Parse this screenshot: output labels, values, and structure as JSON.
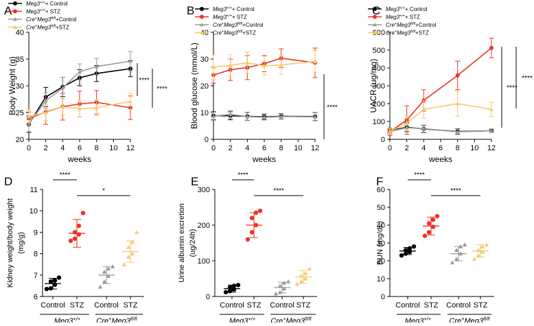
{
  "colors": {
    "black": "#000000",
    "red": "#ee3124",
    "gray": "#9a9a9a",
    "yellow": "#f7c96b"
  },
  "chart_data": [
    {
      "id": "A",
      "panel_label": "A",
      "type": "line",
      "ylabel": "Body Weight (g)",
      "xlabel": "weeks",
      "xlim": [
        0,
        12
      ],
      "ylim": [
        20,
        40
      ],
      "xticks": [
        "0",
        "2",
        "4",
        "6",
        "8",
        "10",
        "12"
      ],
      "yticks": [
        "20",
        "25",
        "30",
        "35",
        "40"
      ],
      "x": [
        0,
        2,
        4,
        6,
        8,
        12
      ],
      "series": [
        {
          "name_parts": [
            "Meg3",
            "+/+",
            "+ Control"
          ],
          "color": "#000000",
          "marker": "circle",
          "values": [
            22.8,
            27.9,
            29.8,
            31.5,
            32.3,
            33.2
          ],
          "err": [
            1.5,
            1.8,
            1.8,
            1.5,
            1.5,
            1.5
          ]
        },
        {
          "name_parts": [
            "Meg3",
            "+/+",
            "+ STZ"
          ],
          "color": "#ee3124",
          "marker": "circle",
          "values": [
            23.9,
            25.1,
            26.1,
            26.6,
            26.9,
            25.9
          ],
          "err": [
            1.2,
            2.3,
            2.5,
            2.4,
            2.2,
            2.2
          ]
        },
        {
          "name_parts": [
            "Cre",
            "+",
            "Meg3",
            "fl/fl",
            "+Control"
          ],
          "color": "#9a9a9a",
          "marker": "triangle",
          "values": [
            22.9,
            27.2,
            29.6,
            32.6,
            33.6,
            34.6
          ],
          "err": [
            1.5,
            1.5,
            2.0,
            1.5,
            1.5,
            1.8
          ]
        },
        {
          "name_parts": [
            "Cre",
            "+",
            "Meg3",
            "fl/fl",
            "+STZ"
          ],
          "color": "#f7c96b",
          "marker": "triangle",
          "values": [
            24.3,
            25.0,
            26.1,
            25.7,
            25.9,
            27.1
          ],
          "err": [
            1.2,
            1.5,
            1.5,
            1.5,
            1.5,
            1.5
          ]
        }
      ],
      "significance": [
        "****",
        "****"
      ]
    },
    {
      "id": "B",
      "panel_label": "B",
      "type": "line",
      "ylabel": "Blood glucose (mmol/L)",
      "xlabel": "weeks",
      "xlim": [
        0,
        12
      ],
      "ylim": [
        0,
        40
      ],
      "xticks": [
        "0",
        "2",
        "4",
        "6",
        "8",
        "10",
        "12"
      ],
      "yticks": [
        "0",
        "10",
        "20",
        "30",
        "40"
      ],
      "x": [
        0,
        2,
        4,
        6,
        8,
        12
      ],
      "series": [
        {
          "name_parts": [
            "Meg3",
            "+/+",
            "+ Control"
          ],
          "color": "#000000",
          "marker": "circle",
          "values": [
            8.8,
            8.8,
            8.6,
            8.4,
            8.6,
            8.5
          ],
          "err": [
            1.5,
            1.5,
            1.5,
            1.0,
            1.0,
            1.5
          ]
        },
        {
          "name_parts": [
            "Meg3",
            "+/+",
            "+ STZ"
          ],
          "color": "#ee3124",
          "marker": "circle",
          "values": [
            24.0,
            26.0,
            26.8,
            28.3,
            30.3,
            28.6
          ],
          "err": [
            3.0,
            4.0,
            4.5,
            3.0,
            3.5,
            5.5
          ]
        },
        {
          "name_parts": [
            "Cre",
            "+",
            "Meg3",
            "fl/fl",
            "+Control"
          ],
          "color": "#9a9a9a",
          "marker": "triangle",
          "values": [
            8.6,
            9.3,
            8.5,
            8.2,
            8.5,
            8.4
          ],
          "err": [
            1.5,
            1.5,
            1.5,
            1.0,
            1.0,
            1.5
          ]
        },
        {
          "name_parts": [
            "Cre",
            "+",
            "Meg3",
            "fl/fl",
            "+STZ"
          ],
          "color": "#f7c96b",
          "marker": "triangle",
          "values": [
            27.0,
            27.6,
            28.6,
            27.5,
            27.8,
            29.1
          ],
          "err": [
            4.5,
            4.0,
            4.0,
            3.5,
            3.5,
            4.0
          ]
        }
      ],
      "significance": [
        "****"
      ]
    },
    {
      "id": "C",
      "panel_label": "C",
      "type": "line",
      "ylabel": "UACR (ug/mg)",
      "xlabel": "weeks",
      "xlim": [
        0,
        12
      ],
      "ylim": [
        0,
        600
      ],
      "xticks": [
        "0",
        "2",
        "4",
        "6",
        "8",
        "10",
        "12"
      ],
      "yticks": [
        "0",
        "100",
        "200",
        "300",
        "400",
        "500",
        "600"
      ],
      "x": [
        0,
        2,
        4,
        8,
        12
      ],
      "series": [
        {
          "name_parts": [
            "Meg3",
            "+/+",
            "+ Control"
          ],
          "color": "#000000",
          "marker": "circle",
          "values": [
            48,
            68,
            58,
            44,
            48
          ],
          "err": [
            10,
            25,
            20,
            15,
            10
          ]
        },
        {
          "name_parts": [
            "Meg3",
            "+/+",
            "+ STZ"
          ],
          "color": "#ee3124",
          "marker": "circle",
          "values": [
            42,
            108,
            218,
            358,
            512
          ],
          "err": [
            20,
            80,
            60,
            80,
            55
          ]
        },
        {
          "name_parts": [
            "Cre",
            "+",
            "Meg3",
            "fl/fl",
            "+Control"
          ],
          "color": "#9a9a9a",
          "marker": "triangle",
          "values": [
            44,
            65,
            60,
            42,
            48
          ],
          "err": [
            10,
            20,
            20,
            15,
            10
          ]
        },
        {
          "name_parts": [
            "Cre",
            "+",
            "Meg3",
            "fl/fl",
            "+STZ"
          ],
          "color": "#f7c96b",
          "marker": "triangle",
          "values": [
            44,
            90,
            168,
            200,
            168
          ],
          "err": [
            15,
            40,
            50,
            70,
            40
          ]
        }
      ],
      "significance": [
        "****",
        "****"
      ]
    },
    {
      "id": "D",
      "panel_label": "D",
      "type": "scatter",
      "ylabel": [
        "Kidney weight/body weight",
        "(mg/g)"
      ],
      "ylim": [
        6,
        11
      ],
      "yticks": [
        "6",
        "7",
        "8",
        "9",
        "10",
        "11"
      ],
      "categories": [
        "Control",
        "STZ",
        "Control",
        "STZ"
      ],
      "groups": [
        "Meg3",
        "+/+",
        "Cre",
        "+",
        "Meg3",
        "fl/fl"
      ],
      "series": [
        {
          "category": "Control",
          "color": "#000000",
          "marker": "circle",
          "mean": 6.6,
          "sd": 0.25,
          "points": [
            6.35,
            6.38,
            6.55,
            6.7,
            6.75,
            6.88
          ]
        },
        {
          "category": "STZ",
          "color": "#ee3124",
          "marker": "circle",
          "mean": 8.95,
          "sd": 0.65,
          "points": [
            8.6,
            8.7,
            8.9,
            9.0,
            9.3,
            9.9
          ]
        },
        {
          "category": "Control",
          "color": "#9a9a9a",
          "marker": "triangle",
          "mean": 7.0,
          "sd": 0.4,
          "points": [
            6.45,
            6.7,
            6.95,
            7.15,
            7.3,
            7.4
          ]
        },
        {
          "category": "STZ",
          "color": "#f7c96b",
          "marker": "triangle",
          "mean": 8.1,
          "sd": 0.5,
          "points": [
            7.5,
            7.85,
            8.0,
            8.3,
            8.55,
            9.0
          ]
        }
      ],
      "comparisons": [
        {
          "from": 0,
          "to": 1,
          "label": "****"
        },
        {
          "from": 1,
          "to": 3,
          "label": "*"
        }
      ]
    },
    {
      "id": "E",
      "panel_label": "E",
      "type": "scatter",
      "ylabel": [
        "Urine albumin excretion",
        "(ug/24h)"
      ],
      "ylim": [
        0,
        300
      ],
      "yticks": [
        "0",
        "100",
        "200",
        "300"
      ],
      "categories": [
        "Control",
        "STZ",
        "Control",
        "STZ"
      ],
      "groups": [
        "Meg3",
        "+/+",
        "Cre",
        "+",
        "Meg3",
        "fl/fl"
      ],
      "series": [
        {
          "category": "Control",
          "color": "#000000",
          "marker": "circle",
          "mean": 22,
          "sd": 10,
          "points": [
            12,
            15,
            20,
            25,
            30,
            32
          ]
        },
        {
          "category": "STZ",
          "color": "#ee3124",
          "marker": "circle",
          "mean": 200,
          "sd": 35,
          "points": [
            160,
            180,
            200,
            220,
            235,
            240
          ]
        },
        {
          "category": "Control",
          "color": "#9a9a9a",
          "marker": "triangle",
          "mean": 25,
          "sd": 15,
          "points": [
            8,
            12,
            22,
            30,
            38,
            42
          ]
        },
        {
          "category": "STZ",
          "color": "#f7c96b",
          "marker": "triangle",
          "mean": 55,
          "sd": 18,
          "points": [
            35,
            42,
            50,
            58,
            65,
            78
          ]
        }
      ],
      "comparisons": [
        {
          "from": 0,
          "to": 1,
          "label": "****"
        },
        {
          "from": 1,
          "to": 3,
          "label": "****"
        }
      ]
    },
    {
      "id": "F",
      "panel_label": "F",
      "type": "scatter",
      "ylabel": [
        "BUN (mg/dL)"
      ],
      "ylim": [
        0,
        60
      ],
      "yticks": [
        "0",
        "10",
        "20",
        "30",
        "40",
        "50",
        "60"
      ],
      "categories": [
        "Control",
        "STZ",
        "Control",
        "STZ"
      ],
      "groups": [
        "Meg3",
        "+/+",
        "Cre",
        "+",
        "Meg3",
        "fl/fl"
      ],
      "series": [
        {
          "category": "Control",
          "color": "#000000",
          "marker": "circle",
          "mean": 25.5,
          "sd": 2,
          "points": [
            23,
            24,
            25,
            26,
            27,
            28
          ]
        },
        {
          "category": "STZ",
          "color": "#ee3124",
          "marker": "circle",
          "mean": 39.5,
          "sd": 5,
          "points": [
            34,
            36,
            39,
            41,
            43,
            45
          ]
        },
        {
          "category": "Control",
          "color": "#9a9a9a",
          "marker": "triangle",
          "mean": 24,
          "sd": 4,
          "points": [
            19,
            21,
            24,
            26,
            28,
            29
          ]
        },
        {
          "category": "STZ",
          "color": "#f7c96b",
          "marker": "triangle",
          "mean": 25.5,
          "sd": 3.5,
          "points": [
            21,
            23,
            25,
            26,
            28,
            29
          ]
        }
      ],
      "comparisons": [
        {
          "from": 0,
          "to": 1,
          "label": "****"
        },
        {
          "from": 1,
          "to": 3,
          "label": "****"
        }
      ]
    }
  ]
}
